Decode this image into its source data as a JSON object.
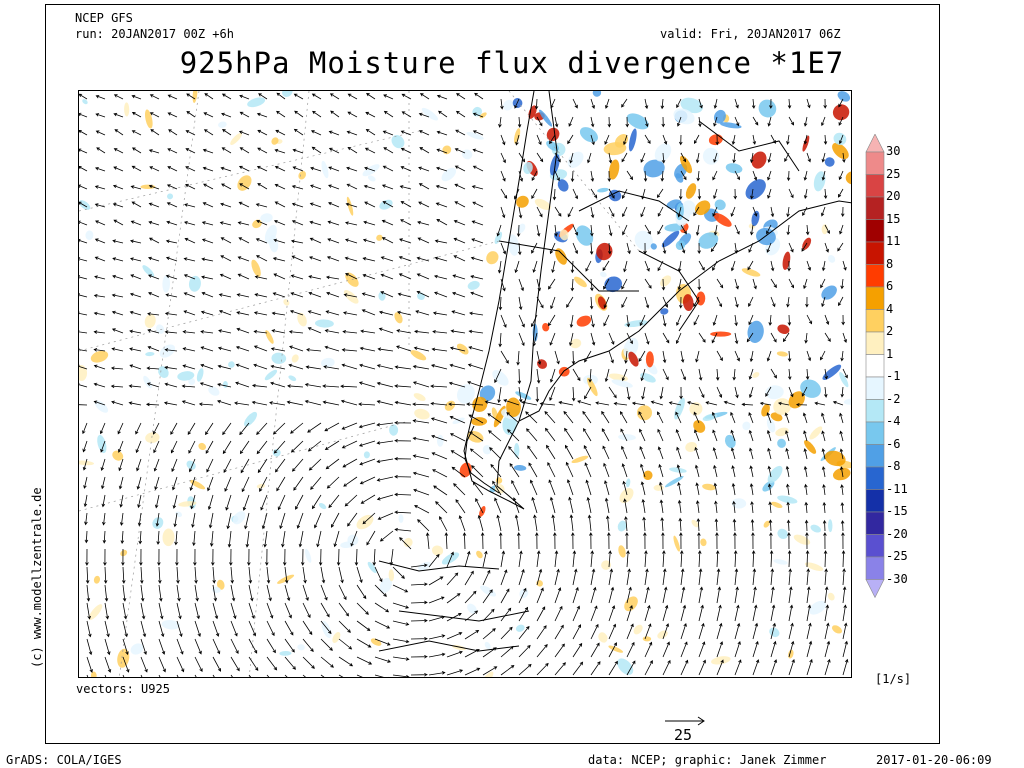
{
  "header": {
    "model": "NCEP GFS",
    "run": "run: 20JAN2017 00Z +6h",
    "valid": "valid: Fri, 20JAN2017 06Z",
    "title": "925hPa Moisture flux divergence *1E7"
  },
  "copyright": "(c) www.modellzentrale.de",
  "vectors_label": "vectors: U925",
  "reference_vector": "25",
  "units": "[1/s]",
  "footer": {
    "software": "GrADS: COLA/IGES",
    "credits": "data: NCEP; graphic: Janek Zimmer",
    "timestamp": "2017-01-20-06:09"
  },
  "colorbar": {
    "levels": [
      "30",
      "25",
      "20",
      "15",
      "11",
      "8",
      "6",
      "4",
      "2",
      "1",
      "-1",
      "-2",
      "-4",
      "-6",
      "-8",
      "-11",
      "-15",
      "-20",
      "-25",
      "-30"
    ],
    "colors": [
      "#f6b3b3",
      "#ee8a8a",
      "#d94444",
      "#b52222",
      "#a00000",
      "#c81400",
      "#ff3c00",
      "#f5a000",
      "#ffd060",
      "#fff0c0",
      "#ffffff",
      "#e6f6ff",
      "#b4e8f6",
      "#78c8ee",
      "#50a0e6",
      "#2866d0",
      "#1430a8",
      "#3228a0",
      "#5a50d0",
      "#8a82e8",
      "#b8b0f6"
    ]
  },
  "colors": {
    "land_outline": "#000000",
    "grid": "#9a9a9a"
  }
}
